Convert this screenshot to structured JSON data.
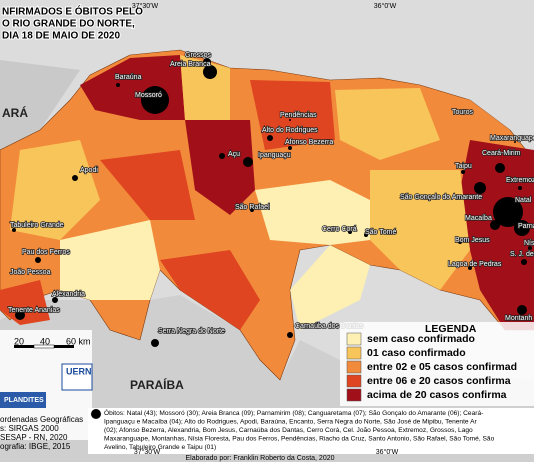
{
  "header": {
    "title_lines": [
      "NFIRMADOS E ÓBITOS PELO",
      "O RIO GRANDE DO NORTE,",
      "DIA 18 DE MAIO DE 2020"
    ]
  },
  "graticule": {
    "top": [
      "37°30'W",
      "36°0'W"
    ],
    "bottom": [
      "37°30'W",
      "36°0'W"
    ]
  },
  "regions": [
    "ARÁ",
    "PARAÍBA"
  ],
  "municipalities": [
    "Grossos",
    "Areia Branca",
    "Baraúna",
    "Mossoró",
    "Pendências",
    "Alto do Rodrigues",
    "Afonso Bezerra",
    "Touros",
    "Maxaranguape",
    "Ceará-Mirim",
    "Extremoz",
    "Açu",
    "Ipanguaçu",
    "Apodi",
    "Taipu",
    "São Gonçalo do Amarante",
    "Natal",
    "Macaíba",
    "Parna",
    "São Rafael",
    "Tabuleiro Grande",
    "Cerro Corá",
    "São Tomé",
    "Bom Jesus",
    "Lagoa de Pedras",
    "Pau dos Ferros",
    "João Pessoa",
    "Alexandria",
    "Tenente Ananias",
    "S. J. de Mipib",
    "Nísi",
    "Montanh",
    "Serra Negra do Norte",
    "Carnaúba dos Dantas"
  ],
  "legend": {
    "title": "LEGENDA",
    "items": [
      {
        "label": "sem caso confirmado",
        "color": "#fdf0b2"
      },
      {
        "label": "01 caso confirmado",
        "color": "#f8c55a"
      },
      {
        "label": "entre 02 e 05 casos confirmad",
        "color": "#f28a3b"
      },
      {
        "label": "entre 06 e 20 casos confirma",
        "color": "#de4520"
      },
      {
        "label": "acima de 20 casos confirma",
        "color": "#a10f18"
      }
    ]
  },
  "scale": [
    "20",
    "40",
    "60 km"
  ],
  "credits": [
    "ordenadas Geográficas",
    "s: SIRGAS 2000",
    "SESAP - RN, 2020",
    "ografia: IBGE, 2015"
  ],
  "logos": [
    "UERN",
    "PLANDITES"
  ],
  "obitos": [
    "Óbitos: Natal (43); Mossoró (30); Areia Branca (09); Parnamirim (08); Canguaretama (07); São Gonçalo do Amarante (06); Ceará-",
    "Ipanguaçu e Macaíba (04); Alto do Rodrigues, Apodi, Baraúna, Encanto, Serra Negra do Norte, São José de Mipibu, Tenente Ar",
    "(02); Afonso Bezerra, Alexandria, Bom Jesus, Carnaúba dos Dantas, Cerro Corá, Cel. João Pessoa, Extremoz, Grossos, Lago",
    "Maxaranguape, Montanhas, Nísia Floresta, Pau dos Ferros, Pendências, Riacho da Cruz, Santo Antonio, São Rafael, São Tomé, São",
    "Avelino, Tabuleiro Grande e Taipu (01)"
  ],
  "footer": "Elaborado por: Franklin Roberto da Costa, 2020"
}
